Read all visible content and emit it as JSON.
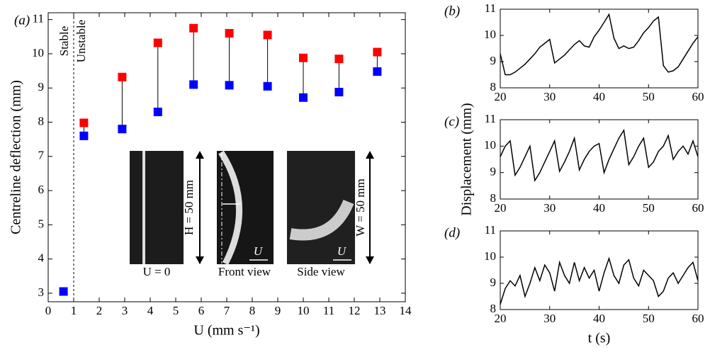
{
  "chart_data": [
    {
      "type": "scatter",
      "panel_label": "(a)",
      "x_label": "U (mm s⁻¹)",
      "y_label": "Centreline deflection (mm)",
      "x": [
        0.6,
        1.4,
        2.9,
        4.3,
        5.7,
        7.1,
        8.6,
        10.0,
        11.4,
        12.9
      ],
      "series": [
        {
          "color": "#0000ff",
          "values": [
            3.05,
            7.6,
            7.8,
            8.3,
            9.1,
            9.08,
            9.05,
            8.72,
            8.88,
            9.48
          ]
        },
        {
          "color": "#ff0000",
          "values": [
            null,
            7.98,
            9.32,
            10.32,
            10.75,
            10.6,
            10.55,
            9.88,
            9.85,
            10.05
          ]
        }
      ],
      "xlim": [
        0,
        14
      ],
      "ylim": [
        2.75,
        11.2
      ],
      "xticks": [
        0,
        1,
        2,
        3,
        4,
        5,
        6,
        7,
        8,
        9,
        10,
        11,
        12,
        13,
        14
      ],
      "yticks": [
        3,
        4,
        5,
        6,
        7,
        8,
        9,
        10,
        11
      ],
      "divider_x": 1,
      "regions": [
        "Stable",
        "Unstable"
      ],
      "annotations": [
        "U = 0",
        "Front view",
        "Side view",
        "H = 50 mm",
        "W = 50 mm",
        "U",
        "U"
      ]
    },
    {
      "type": "line",
      "panel_label": "(b)",
      "color": "#000000",
      "x": [
        20,
        21,
        22,
        23,
        24,
        25,
        26,
        27,
        28,
        29,
        30,
        31,
        32,
        33,
        34,
        35,
        36,
        37,
        38,
        39,
        40,
        41,
        42,
        43,
        44,
        45,
        46,
        47,
        48,
        49,
        50,
        51,
        52,
        53,
        54,
        55,
        56,
        57,
        58,
        59,
        60
      ],
      "values": [
        9.3,
        8.5,
        8.5,
        8.6,
        8.75,
        8.9,
        9.1,
        9.3,
        9.55,
        9.7,
        9.85,
        8.95,
        9.1,
        9.25,
        9.45,
        9.65,
        9.8,
        9.6,
        9.55,
        9.95,
        10.2,
        10.5,
        10.8,
        9.9,
        9.5,
        9.6,
        9.5,
        9.55,
        9.8,
        10.1,
        10.3,
        10.55,
        10.7,
        8.85,
        8.6,
        8.65,
        8.8,
        9.1,
        9.4,
        9.7,
        9.95
      ],
      "xlim": [
        20,
        60
      ],
      "ylim": [
        8,
        11
      ],
      "xticks": [
        20,
        30,
        40,
        50,
        60
      ],
      "yticks": [
        8,
        9,
        10,
        11
      ]
    },
    {
      "type": "line",
      "panel_label": "(c)",
      "color": "#000000",
      "y_label": "Displacement (mm)",
      "x": [
        20,
        21,
        22,
        23,
        24,
        25,
        26,
        27,
        28,
        29,
        30,
        31,
        32,
        33,
        34,
        35,
        36,
        37,
        38,
        39,
        40,
        41,
        42,
        43,
        44,
        45,
        46,
        47,
        48,
        49,
        50,
        51,
        52,
        53,
        54,
        55,
        56,
        57,
        58,
        59,
        60
      ],
      "values": [
        9.6,
        10.0,
        10.2,
        8.9,
        9.2,
        9.6,
        10.0,
        8.7,
        9.0,
        9.4,
        9.8,
        10.2,
        9.05,
        9.4,
        9.8,
        10.3,
        9.1,
        9.5,
        9.8,
        10.0,
        10.1,
        9.0,
        9.5,
        9.9,
        10.3,
        10.6,
        9.3,
        9.6,
        10.0,
        10.3,
        9.2,
        9.4,
        9.8,
        10.0,
        10.4,
        9.5,
        9.8,
        10.0,
        9.7,
        10.2,
        9.6
      ],
      "xlim": [
        20,
        60
      ],
      "ylim": [
        8,
        11
      ],
      "xticks": [
        20,
        30,
        40,
        50,
        60
      ],
      "yticks": [
        8,
        9,
        10,
        11
      ]
    },
    {
      "type": "line",
      "panel_label": "(d)",
      "color": "#000000",
      "x_label": "t (s)",
      "x": [
        20,
        21,
        22,
        23,
        24,
        25,
        26,
        27,
        28,
        29,
        30,
        31,
        32,
        33,
        34,
        35,
        36,
        37,
        38,
        39,
        40,
        41,
        42,
        43,
        44,
        45,
        46,
        47,
        48,
        49,
        50,
        51,
        52,
        53,
        54,
        55,
        56,
        57,
        58,
        59,
        60
      ],
      "values": [
        8.2,
        8.8,
        9.1,
        8.9,
        9.3,
        8.5,
        9.0,
        9.6,
        9.1,
        9.7,
        9.4,
        8.7,
        9.8,
        9.3,
        9.0,
        9.8,
        9.1,
        9.6,
        9.2,
        9.5,
        8.7,
        9.4,
        9.95,
        9.3,
        9.0,
        9.7,
        9.9,
        9.2,
        8.9,
        9.5,
        9.3,
        9.1,
        8.5,
        8.7,
        9.2,
        9.4,
        9.0,
        9.3,
        9.6,
        9.8,
        9.1
      ],
      "xlim": [
        20,
        60
      ],
      "ylim": [
        8,
        11
      ],
      "xticks": [
        20,
        30,
        40,
        50,
        60
      ],
      "yticks": [
        8,
        9,
        10,
        11
      ]
    }
  ]
}
